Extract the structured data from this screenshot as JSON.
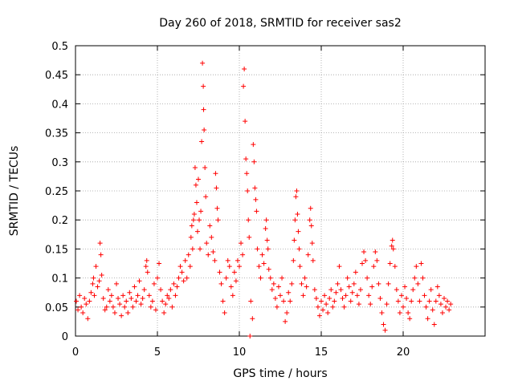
{
  "chart_data": {
    "type": "scatter",
    "title": "Day 260 of 2018, SRMTID for receiver sas2",
    "xlabel": "GPS time / hours",
    "ylabel": "SRMTID / TECUs",
    "xlim": [
      0,
      25
    ],
    "ylim": [
      0,
      0.5
    ],
    "xticks": [
      0,
      5,
      10,
      15,
      20
    ],
    "xtick_labels": [
      "0",
      "5",
      "10",
      "15",
      "20"
    ],
    "yticks": [
      0,
      0.05,
      0.1,
      0.15,
      0.2,
      0.25,
      0.3,
      0.35,
      0.4,
      0.45,
      0.5
    ],
    "ytick_labels": [
      "0",
      "0.05",
      "0.1",
      "0.15",
      "0.2",
      "0.25",
      "0.3",
      "0.35",
      "0.4",
      "0.45",
      "0.5"
    ],
    "grid": true,
    "marker": "+",
    "color": "#ff0000",
    "series": [
      {
        "name": "SRMTID",
        "points": [
          [
            0.05,
            0.06
          ],
          [
            0.15,
            0.045
          ],
          [
            0.25,
            0.07
          ],
          [
            0.35,
            0.05
          ],
          [
            0.45,
            0.04
          ],
          [
            0.55,
            0.065
          ],
          [
            0.65,
            0.055
          ],
          [
            0.75,
            0.03
          ],
          [
            0.85,
            0.06
          ],
          [
            0.95,
            0.075
          ],
          [
            1.05,
            0.09
          ],
          [
            1.1,
            0.1
          ],
          [
            1.15,
            0.07
          ],
          [
            1.25,
            0.12
          ],
          [
            1.35,
            0.085
          ],
          [
            1.45,
            0.095
          ],
          [
            1.5,
            0.16
          ],
          [
            1.55,
            0.14
          ],
          [
            1.6,
            0.105
          ],
          [
            1.7,
            0.065
          ],
          [
            1.8,
            0.045
          ],
          [
            1.9,
            0.05
          ],
          [
            2.0,
            0.08
          ],
          [
            2.1,
            0.06
          ],
          [
            2.2,
            0.07
          ],
          [
            2.3,
            0.05
          ],
          [
            2.4,
            0.04
          ],
          [
            2.5,
            0.09
          ],
          [
            2.6,
            0.065
          ],
          [
            2.7,
            0.055
          ],
          [
            2.8,
            0.035
          ],
          [
            2.9,
            0.07
          ],
          [
            3.0,
            0.05
          ],
          [
            3.1,
            0.06
          ],
          [
            3.2,
            0.04
          ],
          [
            3.3,
            0.075
          ],
          [
            3.4,
            0.065
          ],
          [
            3.5,
            0.05
          ],
          [
            3.6,
            0.085
          ],
          [
            3.7,
            0.06
          ],
          [
            3.8,
            0.07
          ],
          [
            3.9,
            0.095
          ],
          [
            4.0,
            0.055
          ],
          [
            4.1,
            0.065
          ],
          [
            4.2,
            0.08
          ],
          [
            4.3,
            0.12
          ],
          [
            4.35,
            0.13
          ],
          [
            4.4,
            0.11
          ],
          [
            4.5,
            0.07
          ],
          [
            4.6,
            0.05
          ],
          [
            4.7,
            0.06
          ],
          [
            4.8,
            0.09
          ],
          [
            4.9,
            0.045
          ],
          [
            5.0,
            0.1
          ],
          [
            5.1,
            0.125
          ],
          [
            5.2,
            0.08
          ],
          [
            5.3,
            0.06
          ],
          [
            5.4,
            0.04
          ],
          [
            5.5,
            0.055
          ],
          [
            5.6,
            0.07
          ],
          [
            5.7,
            0.065
          ],
          [
            5.8,
            0.08
          ],
          [
            5.9,
            0.05
          ],
          [
            6.0,
            0.09
          ],
          [
            6.1,
            0.07
          ],
          [
            6.2,
            0.085
          ],
          [
            6.3,
            0.1
          ],
          [
            6.4,
            0.12
          ],
          [
            6.5,
            0.11
          ],
          [
            6.6,
            0.095
          ],
          [
            6.7,
            0.13
          ],
          [
            6.8,
            0.1
          ],
          [
            6.9,
            0.14
          ],
          [
            7.0,
            0.12
          ],
          [
            7.05,
            0.17
          ],
          [
            7.1,
            0.19
          ],
          [
            7.15,
            0.15
          ],
          [
            7.2,
            0.2
          ],
          [
            7.25,
            0.21
          ],
          [
            7.3,
            0.29
          ],
          [
            7.35,
            0.26
          ],
          [
            7.4,
            0.23
          ],
          [
            7.45,
            0.18
          ],
          [
            7.5,
            0.27
          ],
          [
            7.55,
            0.2
          ],
          [
            7.6,
            0.15
          ],
          [
            7.65,
            0.215
          ],
          [
            7.7,
            0.335
          ],
          [
            7.75,
            0.47
          ],
          [
            7.8,
            0.43
          ],
          [
            7.82,
            0.39
          ],
          [
            7.85,
            0.355
          ],
          [
            7.9,
            0.29
          ],
          [
            7.95,
            0.24
          ],
          [
            8.0,
            0.16
          ],
          [
            8.1,
            0.14
          ],
          [
            8.2,
            0.19
          ],
          [
            8.3,
            0.17
          ],
          [
            8.4,
            0.145
          ],
          [
            8.5,
            0.13
          ],
          [
            8.55,
            0.28
          ],
          [
            8.6,
            0.255
          ],
          [
            8.65,
            0.22
          ],
          [
            8.7,
            0.2
          ],
          [
            8.8,
            0.11
          ],
          [
            8.9,
            0.09
          ],
          [
            9.0,
            0.06
          ],
          [
            9.1,
            0.04
          ],
          [
            9.2,
            0.1
          ],
          [
            9.3,
            0.13
          ],
          [
            9.4,
            0.12
          ],
          [
            9.5,
            0.085
          ],
          [
            9.6,
            0.07
          ],
          [
            9.7,
            0.11
          ],
          [
            9.8,
            0.095
          ],
          [
            9.9,
            0.13
          ],
          [
            10.0,
            0.12
          ],
          [
            10.1,
            0.16
          ],
          [
            10.2,
            0.14
          ],
          [
            10.25,
            0.43
          ],
          [
            10.3,
            0.46
          ],
          [
            10.35,
            0.37
          ],
          [
            10.4,
            0.305
          ],
          [
            10.45,
            0.28
          ],
          [
            10.5,
            0.25
          ],
          [
            10.55,
            0.2
          ],
          [
            10.6,
            0.17
          ],
          [
            10.65,
            0.0
          ],
          [
            10.7,
            0.06
          ],
          [
            10.8,
            0.03
          ],
          [
            10.85,
            0.33
          ],
          [
            10.9,
            0.3
          ],
          [
            10.95,
            0.255
          ],
          [
            11.0,
            0.235
          ],
          [
            11.05,
            0.215
          ],
          [
            11.1,
            0.15
          ],
          [
            11.2,
            0.12
          ],
          [
            11.3,
            0.1
          ],
          [
            11.4,
            0.14
          ],
          [
            11.5,
            0.125
          ],
          [
            11.6,
            0.185
          ],
          [
            11.65,
            0.2
          ],
          [
            11.7,
            0.165
          ],
          [
            11.75,
            0.15
          ],
          [
            11.8,
            0.115
          ],
          [
            11.9,
            0.1
          ],
          [
            12.0,
            0.08
          ],
          [
            12.1,
            0.09
          ],
          [
            12.2,
            0.065
          ],
          [
            12.3,
            0.05
          ],
          [
            12.4,
            0.085
          ],
          [
            12.5,
            0.07
          ],
          [
            12.6,
            0.1
          ],
          [
            12.7,
            0.06
          ],
          [
            12.8,
            0.025
          ],
          [
            12.9,
            0.04
          ],
          [
            13.0,
            0.075
          ],
          [
            13.1,
            0.06
          ],
          [
            13.2,
            0.09
          ],
          [
            13.3,
            0.13
          ],
          [
            13.35,
            0.165
          ],
          [
            13.4,
            0.2
          ],
          [
            13.45,
            0.24
          ],
          [
            13.5,
            0.25
          ],
          [
            13.55,
            0.21
          ],
          [
            13.6,
            0.18
          ],
          [
            13.65,
            0.15
          ],
          [
            13.7,
            0.12
          ],
          [
            13.8,
            0.09
          ],
          [
            13.9,
            0.07
          ],
          [
            14.0,
            0.1
          ],
          [
            14.1,
            0.085
          ],
          [
            14.2,
            0.14
          ],
          [
            14.3,
            0.2
          ],
          [
            14.35,
            0.22
          ],
          [
            14.4,
            0.19
          ],
          [
            14.45,
            0.16
          ],
          [
            14.5,
            0.13
          ],
          [
            14.6,
            0.08
          ],
          [
            14.7,
            0.065
          ],
          [
            14.8,
            0.05
          ],
          [
            14.9,
            0.035
          ],
          [
            15.0,
            0.06
          ],
          [
            15.1,
            0.045
          ],
          [
            15.2,
            0.07
          ],
          [
            15.3,
            0.055
          ],
          [
            15.4,
            0.04
          ],
          [
            15.5,
            0.065
          ],
          [
            15.6,
            0.08
          ],
          [
            15.7,
            0.05
          ],
          [
            15.8,
            0.06
          ],
          [
            15.9,
            0.075
          ],
          [
            16.0,
            0.09
          ],
          [
            16.1,
            0.12
          ],
          [
            16.2,
            0.08
          ],
          [
            16.3,
            0.065
          ],
          [
            16.4,
            0.05
          ],
          [
            16.5,
            0.07
          ],
          [
            16.6,
            0.1
          ],
          [
            16.7,
            0.085
          ],
          [
            16.8,
            0.06
          ],
          [
            16.9,
            0.075
          ],
          [
            17.0,
            0.09
          ],
          [
            17.1,
            0.11
          ],
          [
            17.2,
            0.07
          ],
          [
            17.3,
            0.055
          ],
          [
            17.4,
            0.08
          ],
          [
            17.5,
            0.125
          ],
          [
            17.6,
            0.145
          ],
          [
            17.7,
            0.13
          ],
          [
            17.8,
            0.1
          ],
          [
            17.9,
            0.07
          ],
          [
            18.0,
            0.055
          ],
          [
            18.1,
            0.085
          ],
          [
            18.2,
            0.12
          ],
          [
            18.3,
            0.145
          ],
          [
            18.4,
            0.13
          ],
          [
            18.5,
            0.09
          ],
          [
            18.6,
            0.065
          ],
          [
            18.7,
            0.04
          ],
          [
            18.8,
            0.02
          ],
          [
            18.9,
            0.01
          ],
          [
            19.0,
            0.055
          ],
          [
            19.1,
            0.09
          ],
          [
            19.2,
            0.125
          ],
          [
            19.3,
            0.155
          ],
          [
            19.35,
            0.165
          ],
          [
            19.4,
            0.15
          ],
          [
            19.5,
            0.12
          ],
          [
            19.6,
            0.08
          ],
          [
            19.7,
            0.06
          ],
          [
            19.8,
            0.04
          ],
          [
            19.9,
            0.07
          ],
          [
            20.0,
            0.05
          ],
          [
            20.1,
            0.085
          ],
          [
            20.2,
            0.065
          ],
          [
            20.3,
            0.04
          ],
          [
            20.4,
            0.03
          ],
          [
            20.5,
            0.06
          ],
          [
            20.6,
            0.08
          ],
          [
            20.7,
            0.1
          ],
          [
            20.8,
            0.12
          ],
          [
            20.9,
            0.09
          ],
          [
            21.0,
            0.06
          ],
          [
            21.1,
            0.125
          ],
          [
            21.2,
            0.1
          ],
          [
            21.3,
            0.07
          ],
          [
            21.4,
            0.05
          ],
          [
            21.5,
            0.03
          ],
          [
            21.6,
            0.06
          ],
          [
            21.7,
            0.08
          ],
          [
            21.8,
            0.045
          ],
          [
            21.9,
            0.02
          ],
          [
            22.0,
            0.06
          ],
          [
            22.1,
            0.085
          ],
          [
            22.2,
            0.07
          ],
          [
            22.3,
            0.055
          ],
          [
            22.4,
            0.04
          ],
          [
            22.5,
            0.065
          ],
          [
            22.6,
            0.05
          ],
          [
            22.7,
            0.06
          ],
          [
            22.8,
            0.045
          ],
          [
            22.9,
            0.055
          ]
        ]
      }
    ]
  }
}
